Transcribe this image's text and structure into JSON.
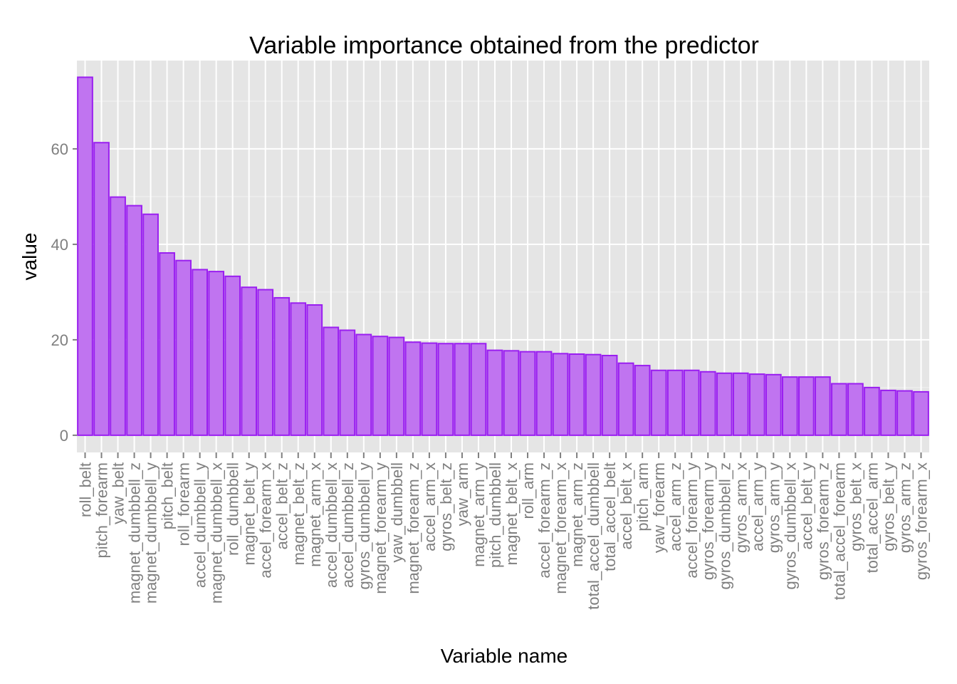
{
  "chart_data": {
    "type": "bar",
    "title": "Variable importance obtained from the predictor",
    "xlabel": "Variable name",
    "ylabel": "value",
    "ylim": [
      -3.6,
      78.5
    ],
    "yticks": [
      0,
      20,
      40,
      60
    ],
    "grid": true,
    "colors": {
      "fill": "#c074f0",
      "stroke": "#9a1ff0",
      "panel": "#e5e5e5",
      "grid": "#ffffff",
      "tick_text": "#7f7f7f"
    },
    "categories": [
      "roll_belt",
      "pitch_forearm",
      "yaw_belt",
      "magnet_dumbbell_z",
      "magnet_dumbbell_y",
      "pitch_belt",
      "roll_forearm",
      "accel_dumbbell_y",
      "magnet_dumbbell_x",
      "roll_dumbbell",
      "magnet_belt_y",
      "accel_forearm_x",
      "accel_belt_z",
      "magnet_belt_z",
      "magnet_arm_x",
      "accel_dumbbell_x",
      "accel_dumbbell_z",
      "gyros_dumbbell_y",
      "magnet_forearm_y",
      "yaw_dumbbell",
      "magnet_forearm_z",
      "accel_arm_x",
      "gyros_belt_z",
      "yaw_arm",
      "magnet_arm_y",
      "pitch_dumbbell",
      "magnet_belt_x",
      "roll_arm",
      "accel_forearm_z",
      "magnet_forearm_x",
      "magnet_arm_z",
      "total_accel_dumbbell",
      "total_accel_belt",
      "accel_belt_x",
      "pitch_arm",
      "yaw_forearm",
      "accel_arm_z",
      "accel_forearm_y",
      "gyros_forearm_y",
      "gyros_dumbbell_z",
      "gyros_arm_x",
      "accel_arm_y",
      "gyros_arm_y",
      "gyros_dumbbell_x",
      "accel_belt_y",
      "gyros_forearm_z",
      "total_accel_forearm",
      "gyros_belt_x",
      "total_accel_arm",
      "gyros_belt_y",
      "gyros_arm_z",
      "gyros_forearm_x"
    ],
    "values": [
      75.0,
      61.3,
      49.9,
      48.1,
      46.3,
      38.2,
      36.6,
      34.7,
      34.3,
      33.3,
      31.0,
      30.5,
      28.8,
      27.7,
      27.3,
      22.6,
      22.0,
      21.1,
      20.7,
      20.5,
      19.5,
      19.3,
      19.2,
      19.2,
      19.2,
      17.8,
      17.7,
      17.5,
      17.5,
      17.1,
      17.0,
      16.9,
      16.7,
      15.1,
      14.6,
      13.6,
      13.6,
      13.6,
      13.3,
      13.0,
      13.0,
      12.8,
      12.7,
      12.2,
      12.2,
      12.2,
      10.8,
      10.8,
      10.0,
      9.4,
      9.3,
      9.1
    ]
  }
}
